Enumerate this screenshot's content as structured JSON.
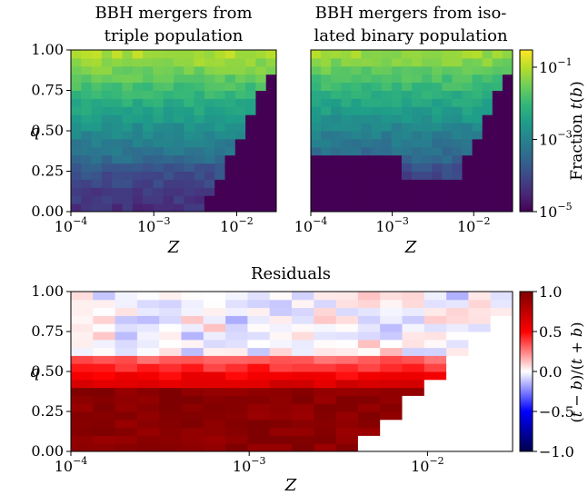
{
  "chart_data": [
    {
      "type": "heatmap",
      "title": "BBH mergers from triple population",
      "title_lines": [
        "BBH mergers from",
        "triple population"
      ],
      "xlabel": "Z",
      "ylabel": "q",
      "x_scale": "log",
      "xlim": [
        0.0001,
        0.03
      ],
      "ylim": [
        0.0,
        1.0
      ],
      "x_ticks": [
        "10^-4",
        "10^-3",
        "10^-2"
      ],
      "y_ticks": [
        "0.00",
        "0.25",
        "0.50",
        "0.75",
        "1.00"
      ],
      "color_scale": "log",
      "colormap": "viridis",
      "grid": false
    },
    {
      "type": "heatmap",
      "title": "BBH mergers from isolated binary population",
      "title_lines": [
        "BBH mergers from iso-",
        "lated binary population"
      ],
      "xlabel": "Z",
      "x_scale": "log",
      "xlim": [
        0.0001,
        0.03
      ],
      "ylim": [
        0.0,
        1.0
      ],
      "x_ticks": [
        "10^-4",
        "10^-3",
        "10^-2"
      ],
      "color_scale": "log",
      "colormap": "viridis",
      "grid": false,
      "colorbar": {
        "label": "Fraction t(b)",
        "ticks": [
          "10^-1",
          "10^-3",
          "10^-5"
        ],
        "range": [
          1e-05,
          0.3
        ]
      }
    },
    {
      "type": "heatmap",
      "title": "Residuals",
      "xlabel": "Z",
      "ylabel": "q",
      "x_scale": "log",
      "xlim": [
        0.0001,
        0.03
      ],
      "ylim": [
        0.0,
        1.0
      ],
      "x_ticks": [
        "10^-4",
        "10^-3",
        "10^-2"
      ],
      "y_ticks": [
        "0.00",
        "0.25",
        "0.50",
        "0.75",
        "1.00"
      ],
      "colormap": "seismic",
      "grid": false,
      "colorbar": {
        "label": "(t - b)/(t + b)",
        "range": [
          -1.0,
          1.0
        ],
        "ticks": [
          "1.0",
          "0.5",
          "0.0",
          "-0.5",
          "-1.0"
        ]
      }
    }
  ],
  "colors": {
    "viridis": [
      "#440154",
      "#482878",
      "#3e4989",
      "#31688e",
      "#26828e",
      "#1f9e89",
      "#35b779",
      "#6ece58",
      "#b5de2b",
      "#fde725"
    ],
    "seismic_neg": "#00004c",
    "seismic_mid": "#ffffff",
    "seismic_pos": "#7f0000"
  }
}
